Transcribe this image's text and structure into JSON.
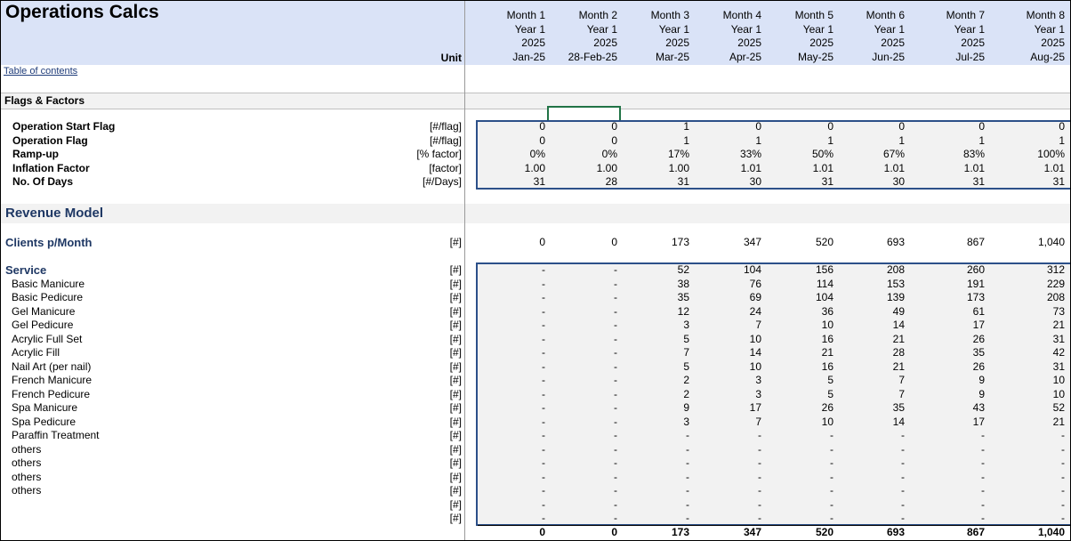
{
  "sheet": {
    "title": "Operations Calcs",
    "unit_header": "Unit",
    "toc_link": "Table of contents"
  },
  "months": [
    {
      "m": "Month 1",
      "y": "Year 1",
      "yr": "2025",
      "d": "Jan-25"
    },
    {
      "m": "Month 2",
      "y": "Year 1",
      "yr": "2025",
      "d": "28-Feb-25"
    },
    {
      "m": "Month 3",
      "y": "Year 1",
      "yr": "2025",
      "d": "Mar-25"
    },
    {
      "m": "Month 4",
      "y": "Year 1",
      "yr": "2025",
      "d": "Apr-25"
    },
    {
      "m": "Month 5",
      "y": "Year 1",
      "yr": "2025",
      "d": "May-25"
    },
    {
      "m": "Month 6",
      "y": "Year 1",
      "yr": "2025",
      "d": "Jun-25"
    },
    {
      "m": "Month 7",
      "y": "Year 1",
      "yr": "2025",
      "d": "Jul-25"
    },
    {
      "m": "Month 8",
      "y": "Year 1",
      "yr": "2025",
      "d": "Aug-25"
    }
  ],
  "flags_section": {
    "title": "Flags & Factors",
    "rows": [
      {
        "label": "Operation Start Flag",
        "unit": "[#/flag]",
        "values": [
          "0",
          "0",
          "1",
          "0",
          "0",
          "0",
          "0",
          "0"
        ]
      },
      {
        "label": "Operation Flag",
        "unit": "[#/flag]",
        "values": [
          "0",
          "0",
          "1",
          "1",
          "1",
          "1",
          "1",
          "1"
        ]
      },
      {
        "label": "Ramp-up",
        "unit": "[% factor]",
        "values": [
          "0%",
          "0%",
          "17%",
          "33%",
          "50%",
          "67%",
          "83%",
          "100%"
        ]
      },
      {
        "label": "Inflation Factor",
        "unit": "[factor]",
        "values": [
          "1.00",
          "1.00",
          "1.00",
          "1.01",
          "1.01",
          "1.01",
          "1.01",
          "1.01"
        ]
      },
      {
        "label": "No. Of Days",
        "unit": "[#/Days]",
        "values": [
          "31",
          "28",
          "31",
          "30",
          "31",
          "30",
          "31",
          "31"
        ]
      }
    ]
  },
  "revenue_section": {
    "title": "Revenue Model",
    "clients": {
      "label": "Clients p/Month",
      "unit": "[#]",
      "values": [
        "0",
        "0",
        "173",
        "347",
        "520",
        "693",
        "867",
        "1,040"
      ]
    },
    "service_header": {
      "label": "Service",
      "unit": "[#]",
      "values": [
        "-",
        "-",
        "52",
        "104",
        "156",
        "208",
        "260",
        "312"
      ]
    },
    "services": [
      {
        "label": "Basic Manicure",
        "unit": "[#]",
        "values": [
          "-",
          "-",
          "38",
          "76",
          "114",
          "153",
          "191",
          "229"
        ]
      },
      {
        "label": "Basic Pedicure",
        "unit": "[#]",
        "values": [
          "-",
          "-",
          "35",
          "69",
          "104",
          "139",
          "173",
          "208"
        ]
      },
      {
        "label": "Gel Manicure",
        "unit": "[#]",
        "values": [
          "-",
          "-",
          "12",
          "24",
          "36",
          "49",
          "61",
          "73"
        ]
      },
      {
        "label": "Gel Pedicure",
        "unit": "[#]",
        "values": [
          "-",
          "-",
          "3",
          "7",
          "10",
          "14",
          "17",
          "21"
        ]
      },
      {
        "label": "Acrylic Full Set",
        "unit": "[#]",
        "values": [
          "-",
          "-",
          "5",
          "10",
          "16",
          "21",
          "26",
          "31"
        ]
      },
      {
        "label": "Acrylic Fill",
        "unit": "[#]",
        "values": [
          "-",
          "-",
          "7",
          "14",
          "21",
          "28",
          "35",
          "42"
        ]
      },
      {
        "label": "Nail Art (per nail)",
        "unit": "[#]",
        "values": [
          "-",
          "-",
          "5",
          "10",
          "16",
          "21",
          "26",
          "31"
        ]
      },
      {
        "label": "French Manicure",
        "unit": "[#]",
        "values": [
          "-",
          "-",
          "2",
          "3",
          "5",
          "7",
          "9",
          "10"
        ]
      },
      {
        "label": "French Pedicure",
        "unit": "[#]",
        "values": [
          "-",
          "-",
          "2",
          "3",
          "5",
          "7",
          "9",
          "10"
        ]
      },
      {
        "label": "Spa Manicure",
        "unit": "[#]",
        "values": [
          "-",
          "-",
          "9",
          "17",
          "26",
          "35",
          "43",
          "52"
        ]
      },
      {
        "label": "Spa Pedicure",
        "unit": "[#]",
        "values": [
          "-",
          "-",
          "3",
          "7",
          "10",
          "14",
          "17",
          "21"
        ]
      },
      {
        "label": "Paraffin Treatment",
        "unit": "[#]",
        "values": [
          "-",
          "-",
          "-",
          "-",
          "-",
          "-",
          "-",
          "-"
        ]
      },
      {
        "label": "others",
        "unit": "[#]",
        "values": [
          "-",
          "-",
          "-",
          "-",
          "-",
          "-",
          "-",
          "-"
        ]
      },
      {
        "label": "others",
        "unit": "[#]",
        "values": [
          "-",
          "-",
          "-",
          "-",
          "-",
          "-",
          "-",
          "-"
        ]
      },
      {
        "label": "others",
        "unit": "[#]",
        "values": [
          "-",
          "-",
          "-",
          "-",
          "-",
          "-",
          "-",
          "-"
        ]
      },
      {
        "label": "others",
        "unit": "[#]",
        "values": [
          "-",
          "-",
          "-",
          "-",
          "-",
          "-",
          "-",
          "-"
        ]
      },
      {
        "label": "",
        "unit": "[#]",
        "values": [
          "-",
          "-",
          "-",
          "-",
          "-",
          "-",
          "-",
          "-"
        ]
      },
      {
        "label": "",
        "unit": "[#]",
        "values": [
          "-",
          "-",
          "-",
          "-",
          "-",
          "-",
          "-",
          "-"
        ]
      }
    ],
    "totals": [
      "0",
      "0",
      "173",
      "347",
      "520",
      "693",
      "867",
      "1,040"
    ]
  }
}
